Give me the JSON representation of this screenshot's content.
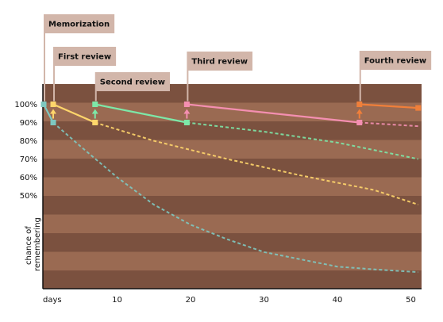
{
  "chart_data": {
    "type": "line",
    "title": "",
    "xlabel": "days",
    "ylabel": "chance of remembering",
    "x_ticks": [
      10,
      20,
      30,
      40,
      50
    ],
    "y_ticks": [
      "100%",
      "90%",
      "80%",
      "70%",
      "60%",
      "50%"
    ],
    "y_tick_values": [
      100,
      90,
      80,
      70,
      60,
      50
    ],
    "xlim": [
      0,
      51
    ],
    "ylim": [
      0,
      105
    ],
    "colors": {
      "memorization": "#7ec8c0",
      "first_review": "#ffd66b",
      "second_review": "#7de8a8",
      "third_review": "#f48fb1",
      "fourth_review": "#f07f3a",
      "band_dark": "#7b513f",
      "band_light": "#9a6a52",
      "annotation_box": "#d2b6aa"
    },
    "series": [
      {
        "key": "memorization",
        "solid": [
          [
            0,
            100
          ],
          [
            1.3,
            90
          ]
        ],
        "dashed": [
          [
            1.3,
            90
          ],
          [
            5,
            77
          ],
          [
            10,
            60
          ],
          [
            15,
            45
          ],
          [
            20,
            34
          ],
          [
            25,
            26
          ],
          [
            30,
            19
          ],
          [
            35,
            15
          ],
          [
            40,
            11
          ],
          [
            45,
            9.5
          ],
          [
            51,
            8
          ]
        ]
      },
      {
        "key": "first_review",
        "solid": [
          [
            1.3,
            100
          ],
          [
            7,
            90
          ]
        ],
        "dashed": [
          [
            7,
            90
          ],
          [
            15,
            80
          ],
          [
            25,
            70
          ],
          [
            35,
            61
          ],
          [
            45,
            53
          ],
          [
            51,
            45
          ]
        ]
      },
      {
        "key": "second_review",
        "solid": [
          [
            7,
            100
          ],
          [
            19.5,
            90
          ]
        ],
        "dashed": [
          [
            19.5,
            90
          ],
          [
            30,
            85
          ],
          [
            40,
            79
          ],
          [
            51,
            70
          ]
        ]
      },
      {
        "key": "third_review",
        "solid": [
          [
            19.5,
            100
          ],
          [
            43,
            90
          ]
        ],
        "dashed": [
          [
            43,
            90
          ],
          [
            51,
            88
          ]
        ]
      },
      {
        "key": "fourth_review",
        "solid": [
          [
            43,
            100
          ],
          [
            51,
            98
          ]
        ],
        "dashed": []
      }
    ],
    "review_arrows": [
      {
        "key": "first_review",
        "x": 1.3
      },
      {
        "key": "second_review",
        "x": 7
      },
      {
        "key": "third_review",
        "x": 19.5
      },
      {
        "key": "fourth_review",
        "x": 43
      }
    ],
    "annotations": [
      {
        "text": "Memorization",
        "x": 0
      },
      {
        "text": "First review",
        "x": 1.3
      },
      {
        "text": "Second review",
        "x": 7
      },
      {
        "text": "Third review",
        "x": 19.5
      },
      {
        "text": "Fourth review",
        "x": 43
      }
    ]
  }
}
